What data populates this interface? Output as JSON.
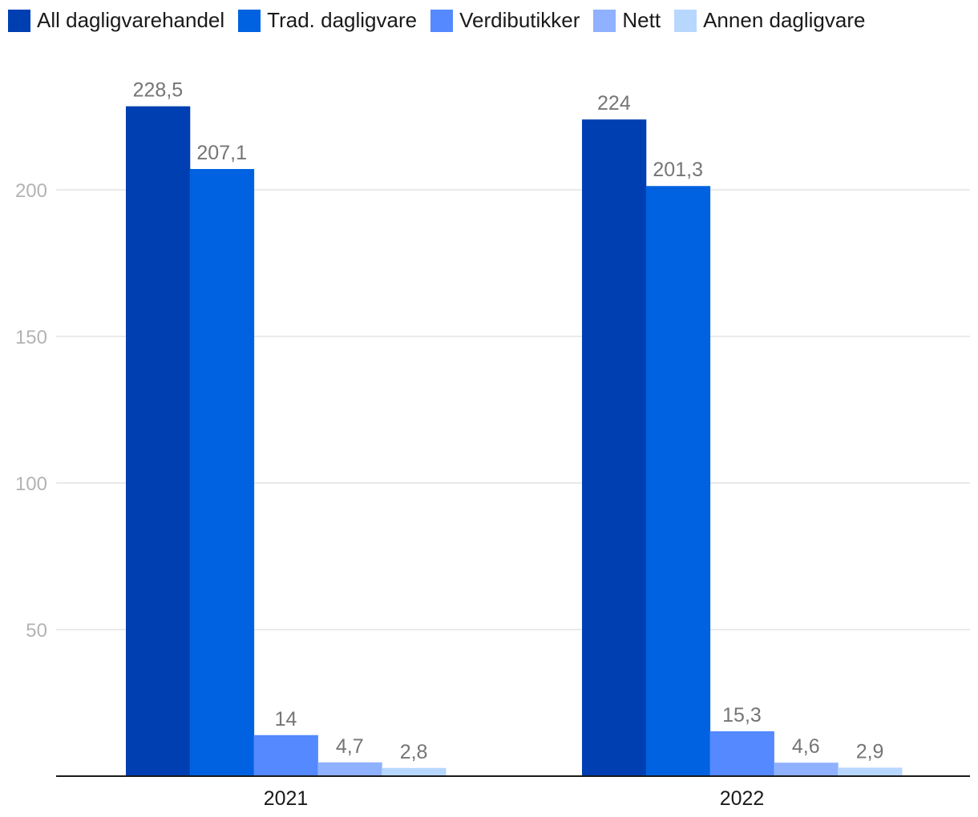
{
  "chart_data": {
    "type": "bar",
    "categories": [
      "2021",
      "2022"
    ],
    "series": [
      {
        "name": "All dagligvarehandel",
        "color": "#003fb2",
        "values": [
          228.5,
          224
        ],
        "labels": [
          "228,5",
          "224"
        ]
      },
      {
        "name": "Trad. dagligvare",
        "color": "#0062e0",
        "values": [
          207.1,
          201.3
        ],
        "labels": [
          "207,1",
          "201,3"
        ]
      },
      {
        "name": "Verdibutikker",
        "color": "#5489ff",
        "values": [
          14,
          15.3
        ],
        "labels": [
          "14",
          "15,3"
        ]
      },
      {
        "name": "Nett",
        "color": "#8fb1ff",
        "values": [
          4.7,
          4.6
        ],
        "labels": [
          "4,7",
          "4,6"
        ]
      },
      {
        "name": "Annen dagligvare",
        "color": "#b8d7ff",
        "values": [
          2.8,
          2.9
        ],
        "labels": [
          "2,8",
          "2,9"
        ]
      }
    ],
    "y_ticks": [
      50,
      100,
      150,
      200
    ],
    "y_tick_labels": [
      "50",
      "100",
      "150",
      "200"
    ],
    "ylim": [
      0,
      250
    ],
    "grid": true,
    "legend_position": "top-left",
    "title": "",
    "xlabel": "",
    "ylabel": ""
  }
}
